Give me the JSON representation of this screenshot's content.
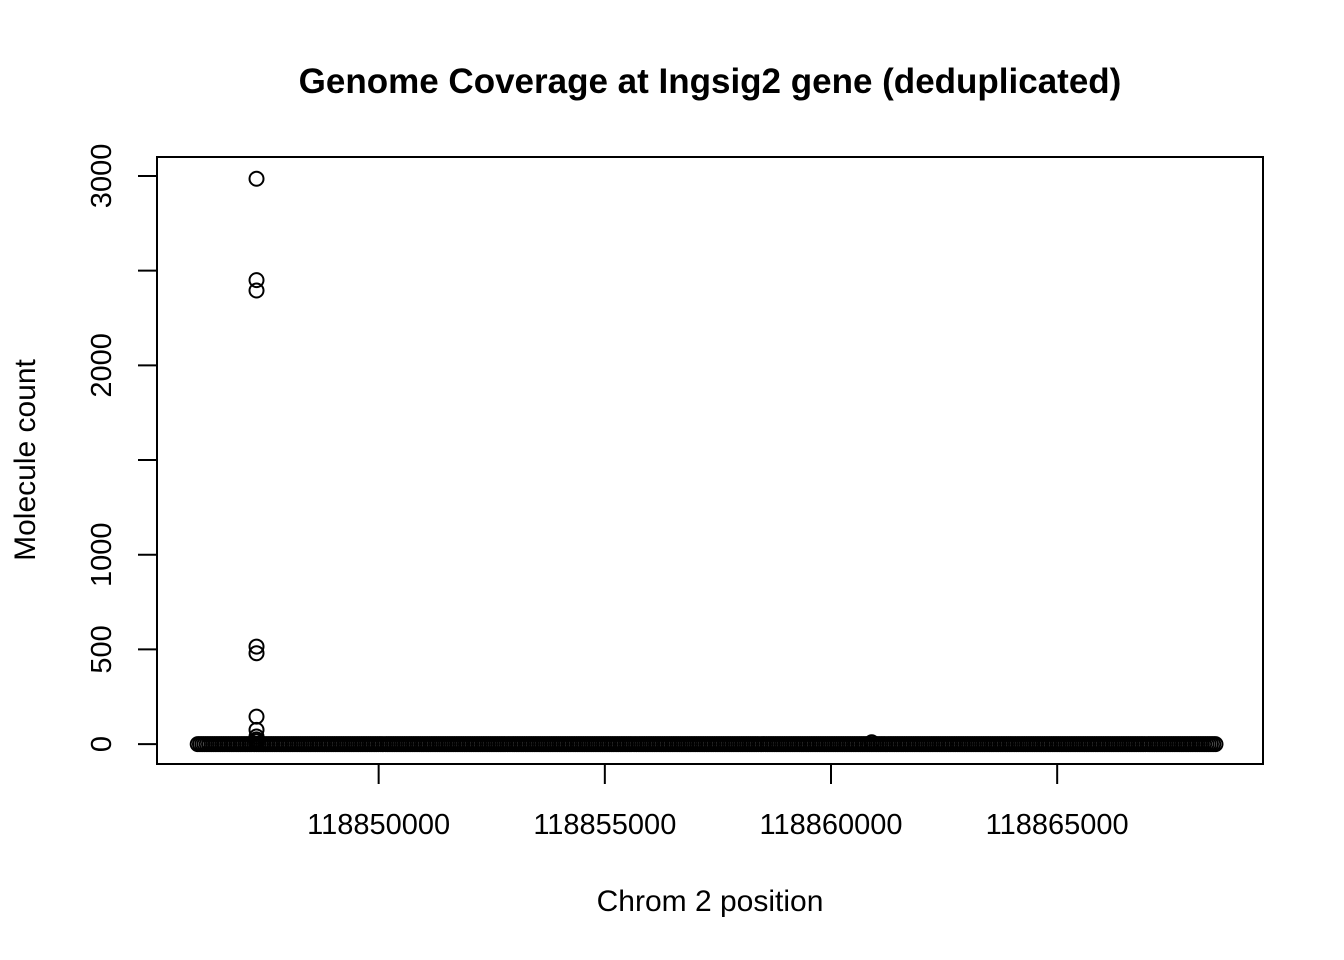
{
  "chart_data": {
    "type": "scatter",
    "title": "Genome Coverage at Ingsig2 gene (deduplicated)",
    "xlabel": "Chrom 2 position",
    "ylabel": "Molecule count",
    "xlim": [
      118845100,
      118869550
    ],
    "ylim": [
      -105,
      3100
    ],
    "x_ticks": [
      118850000,
      118855000,
      118860000,
      118865000
    ],
    "x_tick_labels": [
      "118850000",
      "118855000",
      "118860000",
      "118865000"
    ],
    "y_ticks": [
      0,
      500,
      1000,
      1500,
      2000,
      2500,
      3000
    ],
    "y_tick_labels": [
      "0",
      "500",
      "1000",
      "",
      "2000",
      "",
      "3000"
    ],
    "grid": false,
    "legend": "none",
    "baseline_range": [
      118846000,
      118868500
    ],
    "baseline_value": 0,
    "baseline_step": 50,
    "points": [
      {
        "x": 118847300,
        "y": 2985
      },
      {
        "x": 118847300,
        "y": 2450
      },
      {
        "x": 118847300,
        "y": 2395
      },
      {
        "x": 118847300,
        "y": 515
      },
      {
        "x": 118847300,
        "y": 480
      },
      {
        "x": 118847300,
        "y": 145
      },
      {
        "x": 118847300,
        "y": 75
      },
      {
        "x": 118847300,
        "y": 40
      },
      {
        "x": 118847300,
        "y": 25
      },
      {
        "x": 118847300,
        "y": 15
      },
      {
        "x": 118860900,
        "y": 10
      }
    ]
  }
}
